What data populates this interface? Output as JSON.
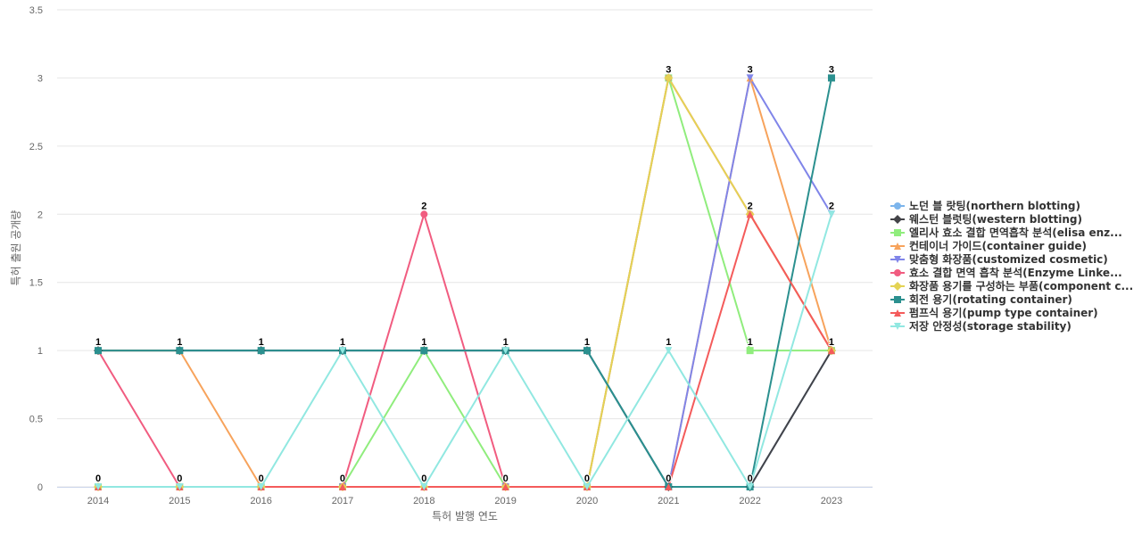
{
  "chart_data": {
    "type": "line",
    "title": "",
    "xlabel": "특허 발행 연도",
    "ylabel": "특허 출원 공개량",
    "x": [
      "2014",
      "2015",
      "2016",
      "2017",
      "2018",
      "2019",
      "2020",
      "2021",
      "2022",
      "2023"
    ],
    "ylim": [
      0,
      3.5
    ],
    "yticks": [
      "0",
      "0.5",
      "1",
      "1.5",
      "2",
      "2.5",
      "3",
      "3.5"
    ],
    "grid": true,
    "legend_position": "right",
    "series": [
      {
        "name": "노던 블 랏팅(northern blotting)",
        "color": "#7cb5ec",
        "marker": "circle",
        "values": [
          1,
          1,
          1,
          1,
          1,
          1,
          1,
          0,
          0,
          1
        ]
      },
      {
        "name": "웨스턴 블럿팅(western blotting)",
        "color": "#434348",
        "marker": "diamond",
        "values": [
          1,
          1,
          1,
          1,
          1,
          1,
          1,
          0,
          0,
          1
        ]
      },
      {
        "name": "엘리사 효소 결합 면역흡착 분석(elisa enz...",
        "color": "#90ed7d",
        "marker": "square",
        "values": [
          0,
          0,
          0,
          0,
          1,
          0,
          0,
          3,
          1,
          1
        ]
      },
      {
        "name": "컨테이너 가이드(container guide)",
        "color": "#f7a35c",
        "marker": "triangle",
        "values": [
          1,
          1,
          0,
          0,
          0,
          0,
          0,
          0,
          3,
          1
        ]
      },
      {
        "name": "맞춤형 화장품(customized cosmetic)",
        "color": "#8085e9",
        "marker": "triangle-down",
        "values": [
          0,
          0,
          0,
          0,
          0,
          0,
          0,
          0,
          3,
          2
        ]
      },
      {
        "name": "효소 결합 면역 흡착 분석(Enzyme Linke...",
        "color": "#f15c80",
        "marker": "circle",
        "values": [
          1,
          0,
          0,
          0,
          2,
          0,
          0,
          3,
          2,
          1
        ]
      },
      {
        "name": "화장품 용기를 구성하는 부품(component c...",
        "color": "#e4d354",
        "marker": "diamond",
        "values": [
          0,
          0,
          0,
          0,
          0,
          0,
          0,
          3,
          2,
          1
        ]
      },
      {
        "name": "회전 용기(rotating container)",
        "color": "#2b908f",
        "marker": "square",
        "values": [
          1,
          1,
          1,
          1,
          1,
          1,
          1,
          0,
          0,
          3
        ]
      },
      {
        "name": "펌프식 용기(pump type container)",
        "color": "#f45b5b",
        "marker": "triangle",
        "values": [
          0,
          0,
          0,
          0,
          0,
          0,
          0,
          0,
          2,
          1
        ]
      },
      {
        "name": "저장 안정성(storage stability)",
        "color": "#91e8e1",
        "marker": "triangle-down",
        "values": [
          0,
          0,
          0,
          1,
          0,
          1,
          0,
          1,
          0,
          2
        ]
      }
    ],
    "data_labels": [
      {
        "x": "2014",
        "text": "1",
        "y": 1
      },
      {
        "x": "2014",
        "text": "0",
        "y": 0
      },
      {
        "x": "2015",
        "text": "1",
        "y": 1
      },
      {
        "x": "2015",
        "text": "0",
        "y": 0
      },
      {
        "x": "2016",
        "text": "1",
        "y": 1
      },
      {
        "x": "2016",
        "text": "0",
        "y": 0
      },
      {
        "x": "2017",
        "text": "1",
        "y": 1
      },
      {
        "x": "2017",
        "text": "0",
        "y": 0
      },
      {
        "x": "2018",
        "text": "2",
        "y": 2
      },
      {
        "x": "2018",
        "text": "1",
        "y": 1
      },
      {
        "x": "2018",
        "text": "0",
        "y": 0
      },
      {
        "x": "2019",
        "text": "1",
        "y": 1
      },
      {
        "x": "2019",
        "text": "0",
        "y": 0
      },
      {
        "x": "2020",
        "text": "1",
        "y": 1
      },
      {
        "x": "2020",
        "text": "0",
        "y": 0
      },
      {
        "x": "2021",
        "text": "3",
        "y": 3
      },
      {
        "x": "2021",
        "text": "1",
        "y": 1
      },
      {
        "x": "2021",
        "text": "0",
        "y": 0
      },
      {
        "x": "2022",
        "text": "3",
        "y": 3
      },
      {
        "x": "2022",
        "text": "2",
        "y": 2
      },
      {
        "x": "2022",
        "text": "1",
        "y": 1
      },
      {
        "x": "2022",
        "text": "0",
        "y": 0
      },
      {
        "x": "2023",
        "text": "3",
        "y": 3
      },
      {
        "x": "2023",
        "text": "2",
        "y": 2
      },
      {
        "x": "2023",
        "text": "1",
        "y": 1
      }
    ]
  }
}
